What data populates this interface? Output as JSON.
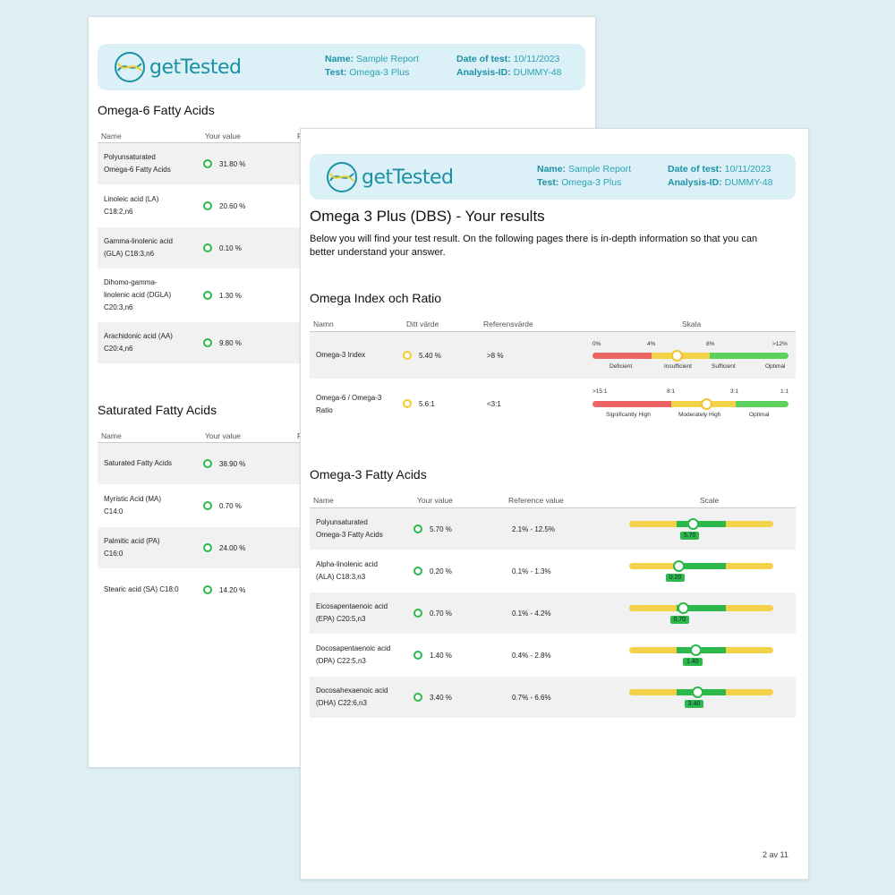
{
  "header": {
    "brand": "getTested",
    "name_label": "Name:",
    "name_value": "Sample Report",
    "test_label": "Test:",
    "test_value": "Omega-3 Plus",
    "date_label": "Date of test:",
    "date_value": "10/11/2023",
    "analysis_label": "Analysis-ID:",
    "analysis_value": "DUMMY-48"
  },
  "back_page": {
    "omega6": {
      "title": "Omega-6 Fatty Acids",
      "col_name": "Name",
      "col_value": "Your value",
      "col_cut": "R",
      "rows": [
        {
          "l1": "Polyunsaturated",
          "l2": "Omega-6 Fatty Acids",
          "value": "31.80 %"
        },
        {
          "l1": "Linoleic acid (LA)",
          "l2": "C18:2,n6",
          "value": "20.60 %"
        },
        {
          "l1": "Gamma-linolenic acid",
          "l2": "(GLA) C18:3,n6",
          "value": "0.10 %"
        },
        {
          "l1": "Dihomo-gamma-",
          "l2": "linolenic acid (DGLA)",
          "l3": "C20:3,n6",
          "value": "1.30 %"
        },
        {
          "l1": "Arachidonic acid (AA)",
          "l2": "C20:4,n6",
          "value": "9.80 %"
        }
      ]
    },
    "saturated": {
      "title": "Saturated Fatty Acids",
      "col_name": "Name",
      "col_value": "Your value",
      "col_cut": "R",
      "rows": [
        {
          "l1": "Saturated Fatty Acids",
          "value": "38.90 %"
        },
        {
          "l1": "Myristic Acid (MA)",
          "l2": "C14:0",
          "value": "0.70 %"
        },
        {
          "l1": "Palmitic acid (PA)",
          "l2": "C16:0",
          "value": "24.00 %"
        },
        {
          "l1": "Stearic acid (SA) C18:0",
          "value": "14.20 %"
        }
      ]
    }
  },
  "front_page": {
    "title": "Omega 3 Plus (DBS) - Your results",
    "intro_l1": "Below you will find your test result. On the following pages there is in-depth information so that you can",
    "intro_l2": "better understand your answer.",
    "index": {
      "title": "Omega Index och Ratio",
      "col_name": "Namn",
      "col_value": "Ditt värde",
      "col_ref": "Referensvärde",
      "col_scale": "Skala",
      "rows": [
        {
          "l1": "Omega-3 Index",
          "value": "5.40 %",
          "ref": ">8 %",
          "ticks": [
            "0%",
            "4%",
            "8%",
            ">12%"
          ],
          "zones": [
            "Deficient",
            "Insufficient",
            "Sufficient",
            "Optimal"
          ],
          "position": 0.43
        },
        {
          "l1": "Omega-6 / Omega-3",
          "l2": "Ratio",
          "value": "5.6:1",
          "ref": "<3:1",
          "ticks": [
            ">15:1",
            "8:1",
            "3:1",
            "1:1"
          ],
          "zones": [
            "Significantly High",
            "Moderately High",
            "Optimal"
          ],
          "position": 0.58
        }
      ]
    },
    "omega3": {
      "title": "Omega-3 Fatty Acids",
      "col_name": "Name",
      "col_value": "Your value",
      "col_ref": "Reference value",
      "col_scale": "Scale",
      "rows": [
        {
          "l1": "Polyunsaturated",
          "l2": "Omega-3 Fatty Acids",
          "value": "5.70 %",
          "ref": "2.1% - 12.5%",
          "marker": "5.70",
          "position": 0.44
        },
        {
          "l1": "Alpha-linolenic acid",
          "l2": "(ALA) C18:3,n3",
          "value": "0.20 %",
          "ref": "0.1% - 1.3%",
          "marker": "0.20",
          "position": 0.34
        },
        {
          "l1": "Eicosapentaenoic acid",
          "l2": "(EPA) C20:5,n3",
          "value": "0.70 %",
          "ref": "0.1% - 4.2%",
          "marker": "0.70",
          "position": 0.37
        },
        {
          "l1": "Docosapentaenoic acid",
          "l2": "(DPA) C22:5,n3",
          "value": "1.40 %",
          "ref": "0.4% - 2.8%",
          "marker": "1.40",
          "position": 0.46
        },
        {
          "l1": "Docosahexaenoic acid",
          "l2": "(DHA) C22:6,n3",
          "value": "3.40 %",
          "ref": "0.7% - 6.6%",
          "marker": "3.40",
          "position": 0.47
        }
      ]
    },
    "page_number": "2 av 11"
  },
  "colors": {
    "green": "#2db84b",
    "yellow": "#f3d24a",
    "red": "#ec6464",
    "brand": "#1a91a5",
    "header_bg": "#dcf0f7"
  }
}
